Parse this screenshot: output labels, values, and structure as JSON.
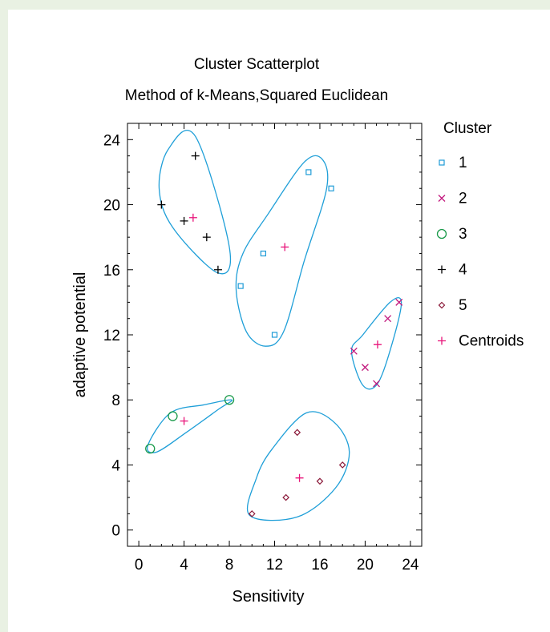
{
  "chart_data": {
    "type": "scatter",
    "title": "Cluster Scatterplot",
    "subtitle": "Method of k-Means,Squared Euclidean",
    "xlabel": "Sensitivity",
    "ylabel": "adaptive potential",
    "xlim": [
      -1,
      25
    ],
    "ylim": [
      -1,
      25
    ],
    "xticks": [
      0,
      4,
      8,
      12,
      16,
      20,
      24
    ],
    "yticks": [
      0,
      4,
      8,
      12,
      16,
      20,
      24
    ],
    "xtick_labels": [
      "0",
      "4",
      "8",
      "12",
      "16",
      "20",
      "24"
    ],
    "ytick_labels": [
      "0",
      "4",
      "8",
      "12",
      "16",
      "20",
      "24"
    ],
    "grid": false,
    "legend_title": "Cluster",
    "legend_position": "right",
    "series": [
      {
        "name": "1",
        "marker": "square",
        "color": "#1e9bd7",
        "points": [
          [
            9,
            15
          ],
          [
            11,
            17
          ],
          [
            12,
            12
          ],
          [
            15,
            22
          ],
          [
            17,
            21
          ]
        ]
      },
      {
        "name": "2",
        "marker": "x",
        "color": "#c2187d",
        "points": [
          [
            19,
            11
          ],
          [
            20,
            10
          ],
          [
            21,
            9
          ],
          [
            22,
            13
          ],
          [
            23,
            14
          ]
        ]
      },
      {
        "name": "3",
        "marker": "circle",
        "color": "#1a9a4a",
        "points": [
          [
            1,
            5
          ],
          [
            3,
            7
          ],
          [
            8,
            8
          ]
        ]
      },
      {
        "name": "4",
        "marker": "plus",
        "color": "#000000",
        "points": [
          [
            2,
            20
          ],
          [
            4,
            19
          ],
          [
            5,
            23
          ],
          [
            6,
            18
          ],
          [
            7,
            16
          ]
        ]
      },
      {
        "name": "5",
        "marker": "diamond",
        "color": "#8b1a3a",
        "points": [
          [
            10,
            1
          ],
          [
            13,
            2
          ],
          [
            14,
            6
          ],
          [
            16,
            3
          ],
          [
            18,
            4
          ]
        ]
      },
      {
        "name": "Centroids",
        "marker": "plus",
        "color": "#e8147a",
        "points": [
          [
            4.8,
            19.2
          ],
          [
            12.9,
            17.4
          ],
          [
            21.1,
            11.4
          ],
          [
            4,
            6.7
          ],
          [
            14.2,
            3.2
          ]
        ]
      }
    ]
  }
}
